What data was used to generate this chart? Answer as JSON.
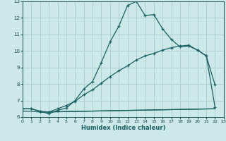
{
  "bg_color": "#cce8e8",
  "grid_color": "#aacccc",
  "line_color": "#1a6060",
  "xlabel": "Humidex (Indice chaleur)",
  "xlim": [
    0,
    23
  ],
  "ylim": [
    6,
    13
  ],
  "xticks": [
    0,
    1,
    2,
    3,
    4,
    5,
    6,
    7,
    8,
    9,
    10,
    11,
    12,
    13,
    14,
    15,
    16,
    17,
    18,
    19,
    20,
    21,
    22,
    23
  ],
  "yticks": [
    6,
    7,
    8,
    9,
    10,
    11,
    12,
    13
  ],
  "series1_x": [
    0,
    1,
    2,
    3,
    4,
    5,
    6,
    7,
    8,
    9,
    10,
    11,
    12,
    13,
    14,
    15,
    16,
    17,
    18,
    19,
    20,
    21,
    22
  ],
  "series1_y": [
    6.5,
    6.5,
    6.35,
    6.2,
    6.4,
    6.55,
    7.0,
    7.7,
    8.15,
    9.3,
    10.55,
    11.5,
    12.75,
    13.0,
    12.15,
    12.2,
    11.35,
    10.7,
    10.25,
    10.3,
    10.05,
    9.7,
    7.95
  ],
  "series2_x": [
    0,
    1,
    2,
    3,
    4,
    5,
    6,
    7,
    8,
    9,
    10,
    11,
    12,
    13,
    14,
    15,
    16,
    17,
    18,
    19,
    20,
    21,
    22
  ],
  "series2_y": [
    6.5,
    6.5,
    6.35,
    6.3,
    6.5,
    6.7,
    6.95,
    7.35,
    7.65,
    8.05,
    8.45,
    8.8,
    9.1,
    9.45,
    9.7,
    9.85,
    10.05,
    10.2,
    10.3,
    10.35,
    10.05,
    9.72,
    6.6
  ],
  "series3_x": [
    0,
    1,
    2,
    22
  ],
  "series3_y": [
    6.35,
    6.35,
    6.3,
    6.5
  ],
  "series4_x": [
    2,
    22
  ],
  "series4_y": [
    6.3,
    6.5
  ]
}
